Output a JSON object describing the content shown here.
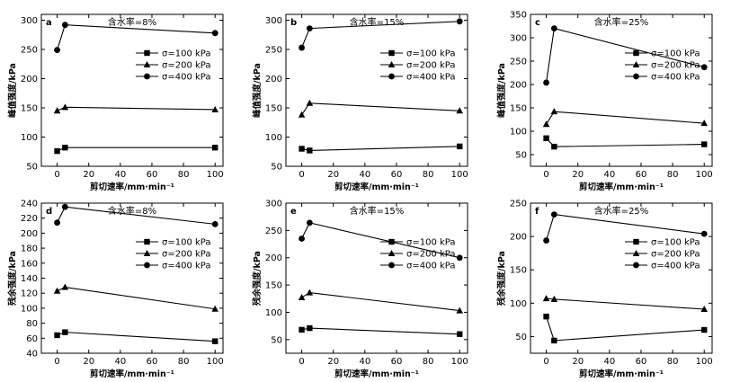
{
  "chart_data": [
    {
      "type": "line",
      "letter": "a",
      "title": "含水率=8%",
      "xlabel": "剪切速率/mm·min⁻¹",
      "ylabel": "峰值强度/kPa",
      "x": [
        0,
        5,
        100
      ],
      "xlim": [
        -10,
        105
      ],
      "ylim": [
        50,
        310
      ],
      "xticks": [
        0,
        20,
        40,
        60,
        80,
        100
      ],
      "yticks": [
        50,
        100,
        150,
        200,
        250,
        300
      ],
      "legend_position": "right",
      "series": [
        {
          "name": "σ=100 kPa",
          "marker": "square",
          "values": [
            76,
            82,
            82
          ]
        },
        {
          "name": "σ=200 kPa",
          "marker": "triangle",
          "values": [
            145,
            151,
            147
          ]
        },
        {
          "name": "σ=400 kPa",
          "marker": "circle",
          "values": [
            249,
            292,
            278
          ]
        }
      ]
    },
    {
      "type": "line",
      "letter": "b",
      "title": "含水率=15%",
      "xlabel": "剪切速率/mm·min⁻¹",
      "ylabel": "峰值强度/kPa",
      "x": [
        0,
        5,
        100
      ],
      "xlim": [
        -10,
        105
      ],
      "ylim": [
        50,
        310
      ],
      "xticks": [
        0,
        20,
        40,
        60,
        80,
        100
      ],
      "yticks": [
        50,
        100,
        150,
        200,
        250,
        300
      ],
      "legend_position": "right",
      "series": [
        {
          "name": "σ=100 kPa",
          "marker": "square",
          "values": [
            80,
            77,
            84
          ]
        },
        {
          "name": "σ=200 kPa",
          "marker": "triangle",
          "values": [
            138,
            158,
            145
          ]
        },
        {
          "name": "σ=400 kPa",
          "marker": "circle",
          "values": [
            253,
            286,
            298
          ]
        }
      ]
    },
    {
      "type": "line",
      "letter": "c",
      "title": "含水率=25%",
      "xlabel": "剪切速率/mm·min⁻¹",
      "ylabel": "峰值强度/kPa",
      "x": [
        0,
        5,
        100
      ],
      "xlim": [
        -10,
        105
      ],
      "ylim": [
        25,
        350
      ],
      "xticks": [
        0,
        20,
        40,
        60,
        80,
        100
      ],
      "yticks": [
        50,
        100,
        150,
        200,
        250,
        300,
        350
      ],
      "legend_position": "right",
      "series": [
        {
          "name": "σ=100 kPa",
          "marker": "square",
          "values": [
            85,
            67,
            72
          ]
        },
        {
          "name": "σ=200 kPa",
          "marker": "triangle",
          "values": [
            115,
            142,
            117
          ]
        },
        {
          "name": "σ=400 kPa",
          "marker": "circle",
          "values": [
            204,
            320,
            237
          ]
        }
      ]
    },
    {
      "type": "line",
      "letter": "d",
      "title": "含水率=8%",
      "xlabel": "剪切速率/mm·min⁻¹",
      "ylabel": "残余强度/kPa",
      "x": [
        0,
        5,
        100
      ],
      "xlim": [
        -10,
        105
      ],
      "ylim": [
        40,
        240
      ],
      "xticks": [
        0,
        20,
        40,
        60,
        80,
        100
      ],
      "yticks": [
        40,
        60,
        80,
        100,
        120,
        140,
        160,
        180,
        200,
        220,
        240
      ],
      "legend_position": "right",
      "series": [
        {
          "name": "σ=100 kPa",
          "marker": "square",
          "values": [
            64,
            68,
            56
          ]
        },
        {
          "name": "σ=200 kPa",
          "marker": "triangle",
          "values": [
            123,
            128,
            99
          ]
        },
        {
          "name": "σ=400 kPa",
          "marker": "circle",
          "values": [
            214,
            235,
            212
          ]
        }
      ]
    },
    {
      "type": "line",
      "letter": "e",
      "title": "含水率=15%",
      "xlabel": "剪切速率/mm·min⁻¹",
      "ylabel": "残余强度/kPa",
      "x": [
        0,
        5,
        100
      ],
      "xlim": [
        -10,
        105
      ],
      "ylim": [
        25,
        300
      ],
      "xticks": [
        0,
        20,
        40,
        60,
        80,
        100
      ],
      "yticks": [
        50,
        100,
        150,
        200,
        250,
        300
      ],
      "legend_position": "right",
      "series": [
        {
          "name": "σ=100 kPa",
          "marker": "square",
          "values": [
            68,
            71,
            60
          ]
        },
        {
          "name": "σ=200 kPa",
          "marker": "triangle",
          "values": [
            127,
            136,
            103
          ]
        },
        {
          "name": "σ=400 kPa",
          "marker": "circle",
          "values": [
            235,
            264,
            200
          ]
        }
      ]
    },
    {
      "type": "line",
      "letter": "f",
      "title": "含水率=25%",
      "xlabel": "剪切速率/mm·min⁻¹",
      "ylabel": "残余强度/kPa",
      "x": [
        0,
        5,
        100
      ],
      "xlim": [
        -10,
        105
      ],
      "ylim": [
        25,
        250
      ],
      "xticks": [
        0,
        20,
        40,
        60,
        80,
        100
      ],
      "yticks": [
        50,
        100,
        150,
        200,
        250
      ],
      "legend_position": "right",
      "series": [
        {
          "name": "σ=100 kPa",
          "marker": "square",
          "values": [
            80,
            44,
            60
          ]
        },
        {
          "name": "σ=200 kPa",
          "marker": "triangle",
          "values": [
            107,
            106,
            91
          ]
        },
        {
          "name": "σ=400 kPa",
          "marker": "circle",
          "values": [
            194,
            233,
            204
          ]
        }
      ]
    }
  ]
}
